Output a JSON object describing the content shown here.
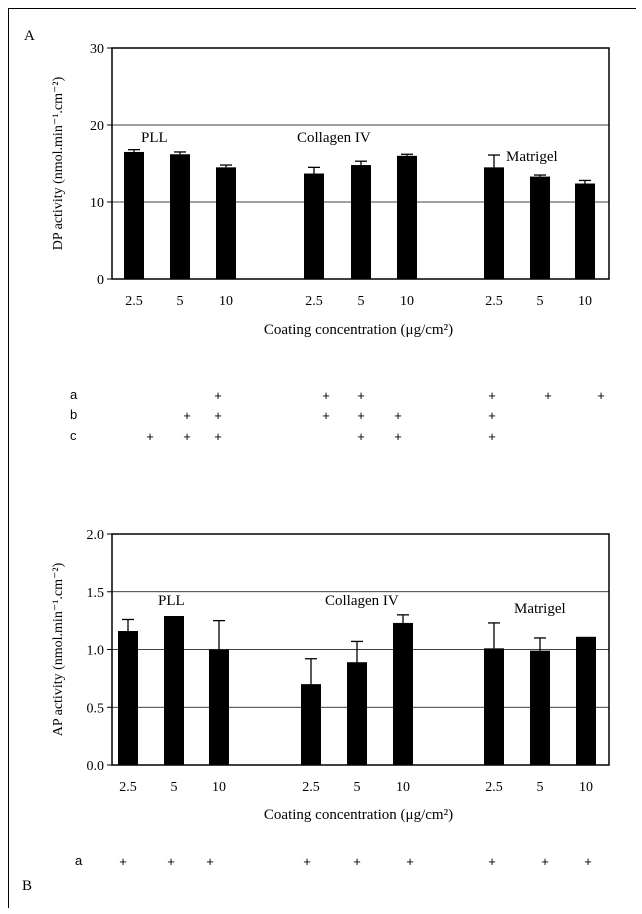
{
  "panels": {
    "a": {
      "letter": "A"
    },
    "b": {
      "letter": "B"
    }
  },
  "chart_data": [
    {
      "type": "bar",
      "panel": "A",
      "ylabel": "DP activity (nmol.min⁻¹.cm⁻²)",
      "xlabel": "Coating concentration (μg/cm²)",
      "ylim": [
        0,
        30
      ],
      "yticks": [
        "0",
        "10",
        "20",
        "30"
      ],
      "grid": true,
      "groups": [
        "PLL",
        "Collagen IV",
        "Matrigel"
      ],
      "categories": [
        "2.5",
        "5",
        "10",
        "2.5",
        "5",
        "10",
        "2.5",
        "5",
        "10"
      ],
      "values": [
        16.5,
        16.2,
        14.5,
        13.7,
        14.8,
        16.0,
        14.5,
        13.3,
        12.4
      ],
      "errors": [
        0.3,
        0.3,
        0.3,
        0.8,
        0.5,
        0.2,
        1.6,
        0.2,
        0.4
      ],
      "significance": {
        "labels": [
          "a",
          "b",
          "c"
        ],
        "marks": [
          [
            false,
            false,
            true,
            true,
            true,
            false,
            true,
            true,
            true
          ],
          [
            false,
            true,
            true,
            true,
            true,
            true,
            true,
            false,
            false
          ],
          [
            true,
            true,
            true,
            false,
            true,
            true,
            true,
            false,
            false
          ]
        ],
        "symbol": "+"
      }
    },
    {
      "type": "bar",
      "panel": "B",
      "ylabel": "AP activity (nmol.min⁻¹.cm⁻²)",
      "xlabel": "Coating concentration (μg/cm²)",
      "ylim": [
        0,
        2.0
      ],
      "yticks": [
        "0.0",
        "0.5",
        "1.0",
        "1.5",
        "2.0"
      ],
      "grid": true,
      "groups": [
        "PLL",
        "Collagen IV",
        "Matrigel"
      ],
      "categories": [
        "2.5",
        "5",
        "10",
        "2.5",
        "5",
        "10",
        "2.5",
        "5",
        "10"
      ],
      "values": [
        1.16,
        1.29,
        1.0,
        0.7,
        0.89,
        1.23,
        1.01,
        0.99,
        1.11
      ],
      "errors": [
        0.1,
        0.0,
        0.25,
        0.22,
        0.18,
        0.07,
        0.22,
        0.11,
        0.0
      ],
      "significance": {
        "labels": [
          "a"
        ],
        "marks": [
          [
            true,
            true,
            true,
            true,
            true,
            true,
            true,
            true,
            true
          ]
        ],
        "symbol": "+"
      }
    }
  ]
}
